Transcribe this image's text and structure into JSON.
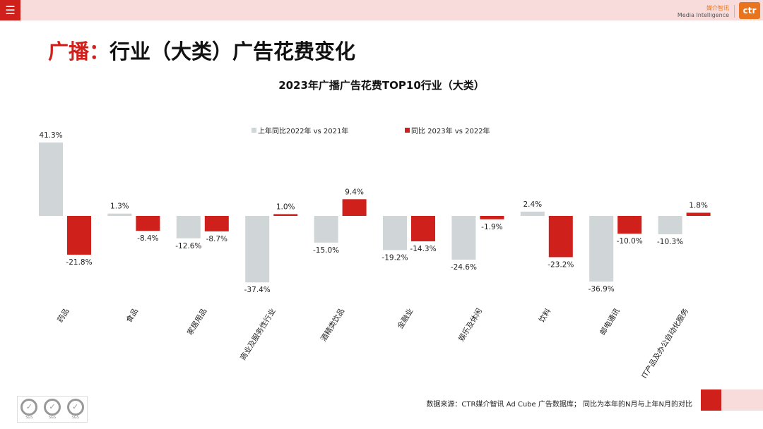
{
  "header": {
    "menu_icon": "hamburger-icon",
    "brand_cn": "媒介智讯",
    "brand_en": "Media Intelligence",
    "logo": "ctr"
  },
  "slide": {
    "title_highlight": "广播：",
    "title_rest": "行业（大类）广告花费变化"
  },
  "footer": {
    "source": "数据来源：CTR媒介智讯 Ad Cube 广告数据库； 同比为本年的N月与上年N月的对比",
    "sgs_label": "SGS"
  },
  "chart_data": {
    "type": "bar",
    "title": "2023年广播广告花费TOP10行业（大类）",
    "categories": [
      "药品",
      "食品",
      "家居用品",
      "商业及服务性行业",
      "酒精类饮品",
      "金融业",
      "娱乐及休闲",
      "饮料",
      "邮电通讯",
      "IT产品及办公自动化服务"
    ],
    "series": [
      {
        "name": "上年同比2022年 vs 2021年",
        "color": "#d0d5d8",
        "values": [
          41.3,
          1.3,
          -12.6,
          -37.4,
          -15.0,
          -19.2,
          -24.6,
          2.4,
          -36.9,
          -10.3
        ]
      },
      {
        "name": "同比 2023年 vs 2022年",
        "color": "#d0201c",
        "values": [
          -21.8,
          -8.4,
          -8.7,
          1.0,
          9.4,
          -14.3,
          -1.9,
          -23.2,
          -10.0,
          1.8
        ]
      }
    ],
    "unit": "%",
    "legend": "top",
    "grid": false
  }
}
